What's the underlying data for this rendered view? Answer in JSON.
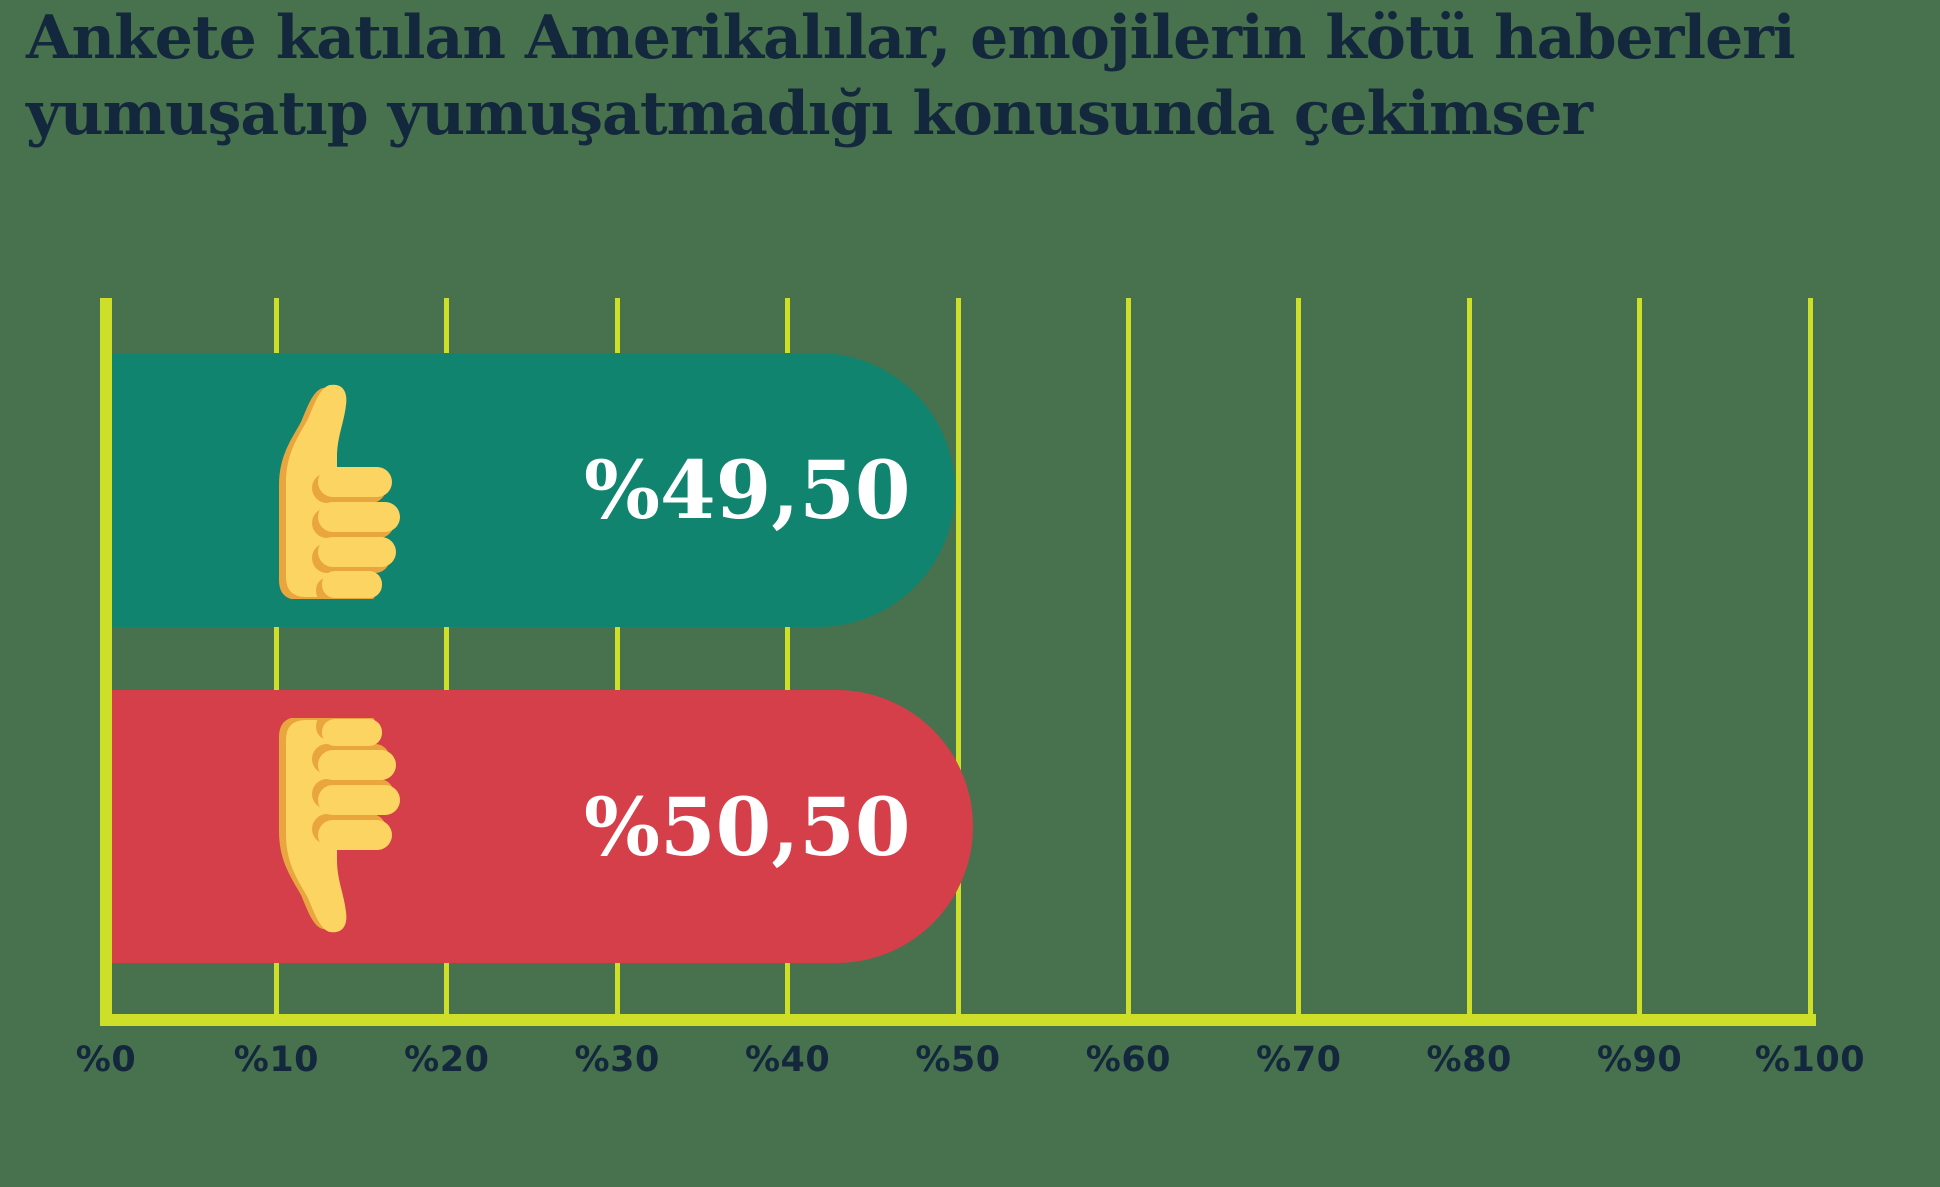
{
  "title": {
    "lines": [
      "Ankete katılan Amerikalılar, emojilerin kötü haberleri",
      "yumuşatıp yumuşatmadığı konusunda çekimser"
    ],
    "full": "Ankete katılan Amerikalılar, emojilerin kötü haberleri yumuşatıp yumuşatmadığı konusunda çekimser"
  },
  "chart_data": {
    "type": "bar",
    "orientation": "horizontal",
    "title": "Ankete katılan Amerikalılar, emojilerin kötü haberleri yumuşatıp yumuşatmadığı konusunda çekimser",
    "categories": [
      "thumbs-up-emoji",
      "thumbs-down-emoji"
    ],
    "series": [
      {
        "category": "thumbs-up-emoji",
        "value": 49.5,
        "label": "%49,50",
        "color": "#10846E"
      },
      {
        "category": "thumbs-down-emoji",
        "value": 50.5,
        "label": "%50,50",
        "color": "#D43F4A"
      }
    ],
    "xlim": [
      0,
      100
    ],
    "x_ticks": [
      {
        "value": 0,
        "label": "%0"
      },
      {
        "value": 10,
        "label": "%10"
      },
      {
        "value": 20,
        "label": "%20"
      },
      {
        "value": 30,
        "label": "%30"
      },
      {
        "value": 40,
        "label": "%40"
      },
      {
        "value": 50,
        "label": "%50"
      },
      {
        "value": 60,
        "label": "%60"
      },
      {
        "value": 70,
        "label": "%70"
      },
      {
        "value": 80,
        "label": "%80"
      },
      {
        "value": 90,
        "label": "%90"
      },
      {
        "value": 100,
        "label": "%100"
      }
    ],
    "grid": true,
    "legend": false
  },
  "colors": {
    "background": "#48714E",
    "gridline": "#CDDF29",
    "text": "#13283C",
    "bar_value_text": "#FFFFFF",
    "bar_up": "#10846E",
    "bar_down": "#D43F4A",
    "hand_fill": "#FCD462",
    "hand_shade": "#E9A63F"
  }
}
